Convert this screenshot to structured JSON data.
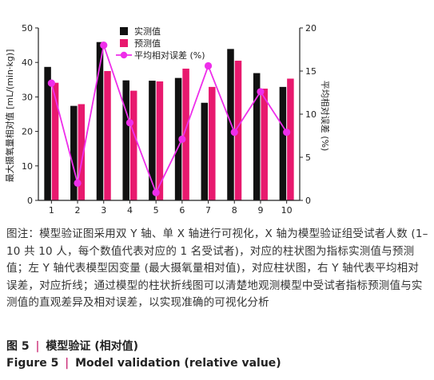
{
  "chart_data": {
    "type": "bar",
    "categories": [
      "1",
      "2",
      "3",
      "4",
      "5",
      "6",
      "7",
      "8",
      "9",
      "10"
    ],
    "series": [
      {
        "name": "实测值",
        "kind": "bar",
        "axis": "left",
        "color": "#111111",
        "values": [
          38.7,
          27.4,
          45.9,
          34.8,
          34.7,
          35.5,
          28.3,
          43.9,
          36.9,
          32.9
        ]
      },
      {
        "name": "预测值",
        "kind": "bar",
        "axis": "left",
        "color": "#e8196e",
        "values": [
          34.1,
          27.9,
          37.5,
          31.8,
          34.5,
          38.2,
          32.9,
          40.5,
          32.4,
          35.3
        ]
      },
      {
        "name": "平均相对误差 (%)",
        "kind": "line",
        "axis": "right",
        "color": "#ee2eea",
        "values": [
          13.6,
          2.0,
          18.0,
          9.0,
          0.9,
          7.1,
          15.6,
          7.9,
          12.6,
          7.9
        ]
      }
    ],
    "ylabel": "最大摄氧量相对值 [mL/(min·kg)]",
    "y2label": "平均相对误差 (%)",
    "ylim": [
      0,
      50
    ],
    "y2lim": [
      0,
      20
    ],
    "yticks": [
      "0",
      "10",
      "20",
      "30",
      "40",
      "50"
    ],
    "y2ticks": [
      "0",
      "5",
      "10",
      "15",
      "20"
    ],
    "legend": "top-center"
  },
  "caption": {
    "body": "图注：模型验证图采用双 Y 轴、单 X 轴进行可视化，X 轴为模型验证组受试者人数 (1–10 共 10 人，每个数值代表对应的 1 名受试者)，对应的柱状图为指标实测值与预测值；左 Y 轴代表模型因变量 (最大摄氧量相对值)，对应柱状图，右 Y 轴代表平均相对误差，对应折线；通过模型的柱状折线图可以清楚地观测模型中受试者指标预测值与实测值的直观差异及相对误差，以实现准确的可视化分析",
    "figure_label_cn": "图 5",
    "figure_title_cn": "模型验证 (相对值)",
    "figure_label_en": "Figure 5",
    "figure_title_en": "Model validation (relative value)",
    "separator": "|"
  }
}
